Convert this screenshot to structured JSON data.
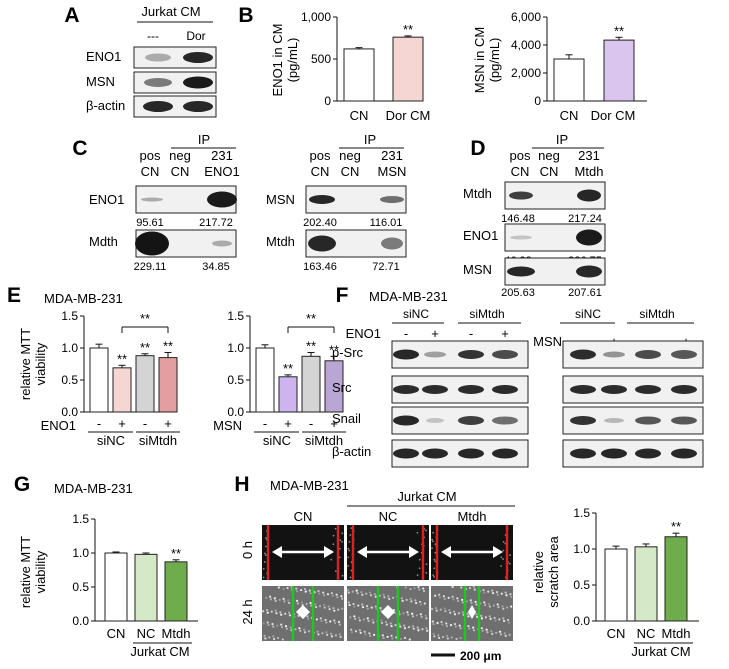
{
  "panels": {
    "A": {
      "letter": "A",
      "title": "Jurkat CM",
      "lanes": [
        "---",
        "Dor"
      ],
      "rows": [
        "ENO1",
        "MSN",
        "β-actin"
      ]
    },
    "B": {
      "letter": "B",
      "charts": [
        {
          "type": "bar",
          "ylabel": "ENO1 in CM",
          "yunit": "(pg/mL)",
          "yticks": [
            "0",
            "500",
            "1,000"
          ],
          "ylim": [
            0,
            1000
          ],
          "categories": [
            "CN",
            "Dor CM"
          ],
          "values": [
            620,
            760
          ],
          "errors": [
            15,
            15
          ],
          "colors": [
            "#ffffff",
            "#f6d6d2"
          ],
          "sig": [
            "",
            "**"
          ]
        },
        {
          "type": "bar",
          "ylabel": "MSN in CM",
          "yunit": "(pg/mL)",
          "yticks": [
            "0",
            "2,000",
            "4,000",
            "6,000"
          ],
          "ylim": [
            0,
            6000
          ],
          "categories": [
            "CN",
            "Dor CM"
          ],
          "values": [
            3000,
            4350
          ],
          "errors": [
            300,
            200
          ],
          "colors": [
            "#ffffff",
            "#d9c5ee"
          ],
          "sig": [
            "",
            "**"
          ]
        }
      ]
    },
    "C": {
      "letter": "C",
      "ip": "IP",
      "left": {
        "lanes_top": [
          "pos",
          "neg",
          "231"
        ],
        "lanes_bottom": [
          "CN",
          "CN",
          "ENO1"
        ],
        "rows": [
          {
            "label": "ENO1",
            "values": [
              "95.61",
              "217.72"
            ]
          },
          {
            "label": "Mdth",
            "values": [
              "229.11",
              "34.85"
            ]
          }
        ]
      },
      "right": {
        "lanes_top": [
          "pos",
          "neg",
          "231"
        ],
        "lanes_bottom": [
          "CN",
          "CN",
          "MSN"
        ],
        "rows": [
          {
            "label": "MSN",
            "values": [
              "202.40",
              "116.01"
            ]
          },
          {
            "label": "Mtdh",
            "values": [
              "163.46",
              "72.71"
            ]
          }
        ]
      }
    },
    "D": {
      "letter": "D",
      "ip": "IP",
      "lanes_top": [
        "pos",
        "neg",
        "231"
      ],
      "lanes_bottom": [
        "CN",
        "CN",
        "Mtdh"
      ],
      "rows": [
        {
          "label": "Mtdh",
          "values": [
            "146.48",
            "217.24"
          ]
        },
        {
          "label": "ENO1",
          "values": [
            "46.33",
            "226.75"
          ]
        },
        {
          "label": "MSN",
          "values": [
            "205.63",
            "207.61"
          ]
        }
      ]
    },
    "E": {
      "letter": "E",
      "title": "MDA-MB-231",
      "ylabel": [
        "relative MTT",
        "viability"
      ],
      "yticks": [
        "0.0",
        "0.5",
        "1.0",
        "1.5"
      ],
      "groups": [
        "siNC",
        "siMtdh"
      ],
      "charts": [
        {
          "type": "bar",
          "treatment": "ENO1",
          "signs": [
            "-",
            "+",
            "-",
            "+"
          ],
          "values": [
            1.0,
            0.69,
            0.88,
            0.85
          ],
          "errors": [
            0.06,
            0.04,
            0.03,
            0.08
          ],
          "colors": [
            "#ffffff",
            "#f6d6d2",
            "#d4d4d4",
            "#e39f9f"
          ],
          "sig": [
            "",
            "**",
            "**",
            "**"
          ],
          "bracket": "**",
          "ylim": [
            0,
            1.5
          ]
        },
        {
          "type": "bar",
          "treatment": "MSN",
          "signs": [
            "-",
            "+",
            "-",
            "+"
          ],
          "values": [
            1.0,
            0.55,
            0.87,
            0.8
          ],
          "errors": [
            0.05,
            0.03,
            0.06,
            0.07
          ],
          "colors": [
            "#ffffff",
            "#cdb3f0",
            "#d4d4d4",
            "#b9a6d4"
          ],
          "sig": [
            "",
            "**",
            "**",
            "**"
          ],
          "bracket": "**",
          "ylim": [
            0,
            1.5
          ]
        }
      ]
    },
    "F": {
      "letter": "F",
      "title": "MDA-MB-231",
      "rows": [
        "p-Src",
        "Src",
        "Snail",
        "β-actin"
      ],
      "blocks": [
        {
          "treatment": "ENO1",
          "groups": [
            "siNC",
            "siMtdh"
          ],
          "signs": [
            "-",
            "+",
            "-",
            "+"
          ]
        },
        {
          "treatment": "MSN",
          "groups": [
            "siNC",
            "siMtdh"
          ],
          "signs": [
            "-",
            "+",
            "-",
            "+"
          ]
        }
      ]
    },
    "G": {
      "letter": "G",
      "title": "MDA-MB-231",
      "ylabel": [
        "relative MTT",
        "viability"
      ],
      "yticks": [
        "0.0",
        "0.5",
        "1.0",
        "1.5"
      ],
      "categories": [
        "CN",
        "NC",
        "Mtdh"
      ],
      "group_label": "Jurkat CM",
      "chart": {
        "type": "bar",
        "values": [
          1.0,
          0.98,
          0.87
        ],
        "errors": [
          0.015,
          0.02,
          0.03
        ],
        "colors": [
          "#ffffff",
          "#d5e8c7",
          "#6fad4c"
        ],
        "sig": [
          "",
          "",
          "**"
        ],
        "ylim": [
          0,
          1.5
        ]
      }
    },
    "H": {
      "letter": "H",
      "title": "MDA-MB-231",
      "group_label": "Jurkat CM",
      "columns": [
        "CN",
        "NC",
        "Mtdh"
      ],
      "rows": [
        "0 h",
        "24 h"
      ],
      "scale_bar": "200 μm",
      "ylabel": [
        "relative",
        "scratch area"
      ],
      "yticks": [
        "0.0",
        "0.5",
        "1.0",
        "1.5"
      ],
      "categories": [
        "CN",
        "NC",
        "Mtdh"
      ],
      "xgroup_label": "Jurkat CM",
      "chart": {
        "type": "bar",
        "values": [
          1.0,
          1.03,
          1.17
        ],
        "errors": [
          0.04,
          0.04,
          0.05
        ],
        "colors": [
          "#ffffff",
          "#d5e8c7",
          "#6fad4c"
        ],
        "sig": [
          "",
          "",
          "**"
        ],
        "ylim": [
          0,
          1.5
        ]
      }
    }
  },
  "chart_data": [
    {
      "type": "bar",
      "ylabel": "ENO1 in CM (pg/mL)",
      "categories": [
        "CN",
        "Dor CM"
      ],
      "values": [
        620,
        760
      ],
      "ylim": [
        0,
        1000
      ]
    },
    {
      "type": "bar",
      "ylabel": "MSN in CM (pg/mL)",
      "categories": [
        "CN",
        "Dor CM"
      ],
      "values": [
        3000,
        4350
      ],
      "ylim": [
        0,
        6000
      ]
    },
    {
      "type": "bar",
      "ylabel": "relative MTT viability",
      "categories": [
        "siNC -",
        "siNC +",
        "siMtdh -",
        "siMtdh +"
      ],
      "values": [
        1.0,
        0.69,
        0.88,
        0.85
      ],
      "ylim": [
        0,
        1.5
      ]
    },
    {
      "type": "bar",
      "ylabel": "relative MTT viability",
      "categories": [
        "siNC -",
        "siNC +",
        "siMtdh -",
        "siMtdh +"
      ],
      "values": [
        1.0,
        0.55,
        0.87,
        0.8
      ],
      "ylim": [
        0,
        1.5
      ]
    },
    {
      "type": "bar",
      "ylabel": "relative MTT viability",
      "categories": [
        "CN",
        "NC",
        "Mtdh"
      ],
      "values": [
        1.0,
        0.98,
        0.87
      ],
      "ylim": [
        0,
        1.5
      ]
    },
    {
      "type": "bar",
      "ylabel": "relative scratch area",
      "categories": [
        "CN",
        "NC",
        "Mtdh"
      ],
      "values": [
        1.0,
        1.03,
        1.17
      ],
      "ylim": [
        0,
        1.5
      ]
    }
  ]
}
